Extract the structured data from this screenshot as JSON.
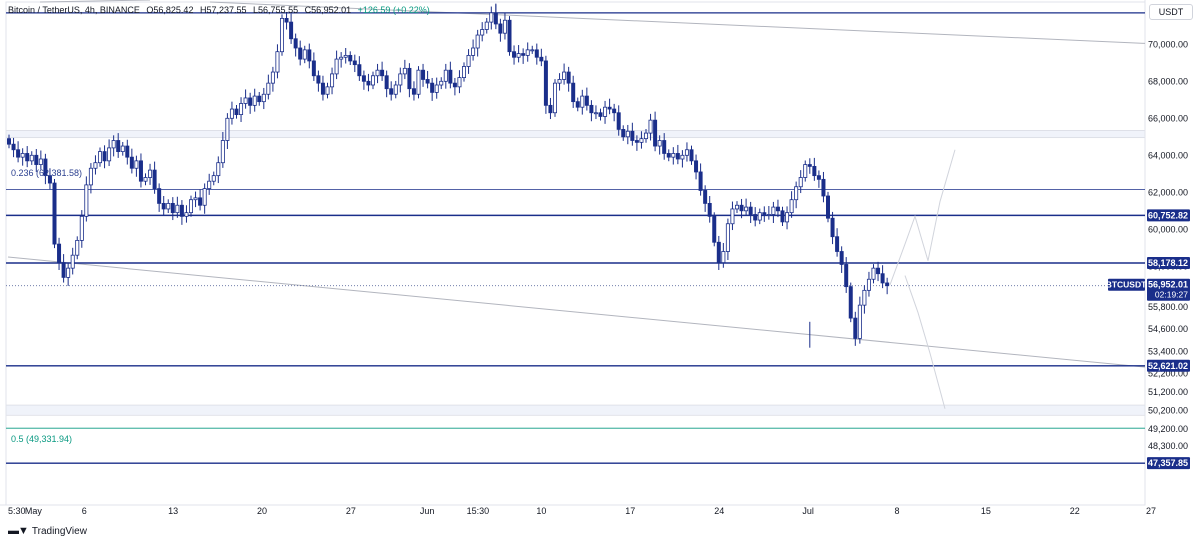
{
  "legend": {
    "symbol": "Bitcoin / TetherUS, 4h, BINANCE",
    "open": "O56,825.42",
    "high": "H57,237.55",
    "low": "L56,755.55",
    "close": "C56,952.01",
    "change": "+126.59 (+0.22%)"
  },
  "currency_button": "USDT",
  "fib_labels": {
    "f0236": "0.236 (62,381.58)",
    "f05": "0.5 (49,331.94)"
  },
  "brand": "TradingView",
  "colors": {
    "candle": "#1a2e8a",
    "level_line": "#1a2e8a",
    "trend_line": "#b2b5be",
    "fib05": "#089981",
    "price_tag_bg": "#1a2e8a",
    "zone_fill": "#f0f3fa"
  },
  "chart_data": {
    "type": "candlestick",
    "title": "Bitcoin / TetherUS, 4h, BINANCE",
    "ylim": [
      46700,
      72600
    ],
    "y_ticks": [
      "70,000.00",
      "68,000.00",
      "66,000.00",
      "64,000.00",
      "62,000.00",
      "60,000.00",
      "58,000.00",
      "55,800.00",
      "54,600.00",
      "53,400.00",
      "52,200.00",
      "51,200.00",
      "50,200.00",
      "49,200.00",
      "48,300.00"
    ],
    "y_tick_values": [
      70000,
      68000,
      66000,
      64000,
      62000,
      60000,
      58000,
      55800,
      54600,
      53400,
      52200,
      51200,
      50200,
      49200,
      48300
    ],
    "x_ticks": [
      "5:30",
      "May",
      "6",
      "13",
      "20",
      "27",
      "Jun",
      "15:30",
      "10",
      "17",
      "24",
      "Jul",
      "8",
      "15",
      "22",
      "27"
    ],
    "x_tick_days": [
      0,
      2,
      6,
      13,
      20,
      27,
      33,
      37,
      42,
      49,
      56,
      63,
      70,
      77,
      84,
      90
    ],
    "horizontal_levels": [
      {
        "value": 60752.82,
        "label": "60,752.82"
      },
      {
        "value": 58178.12,
        "label": "58,178.12"
      },
      {
        "value": 52621.02,
        "label": "52,621.02"
      },
      {
        "value": 47357.85,
        "label": "47,357.85"
      }
    ],
    "current_price": {
      "symbol": "BTCUSDT",
      "value": 56952.01,
      "label": "56,952.01",
      "countdown": "02:19:27"
    },
    "closes": [
      64600,
      64300,
      63900,
      64100,
      63700,
      64000,
      63500,
      63800,
      62900,
      62500,
      59200,
      58200,
      57400,
      57900,
      58600,
      59400,
      60700,
      62400,
      63300,
      63600,
      64200,
      63700,
      64400,
      64800,
      64200,
      64500,
      63900,
      63300,
      63700,
      62600,
      62800,
      63200,
      62200,
      61400,
      61100,
      61400,
      60900,
      61300,
      60700,
      60900,
      61600,
      61700,
      61300,
      62200,
      62600,
      62900,
      63600,
      64800,
      66000,
      66500,
      66200,
      66800,
      67100,
      66700,
      67200,
      66900,
      67300,
      67900,
      68500,
      69600,
      71400,
      71200,
      70300,
      69800,
      69200,
      69700,
      69100,
      68300,
      67900,
      67300,
      67700,
      68400,
      69200,
      69300,
      69400,
      69100,
      68900,
      68300,
      68000,
      67800,
      68300,
      68600,
      68300,
      67600,
      67300,
      67800,
      68400,
      68700,
      67600,
      67300,
      68600,
      68100,
      67900,
      67400,
      67800,
      68000,
      68600,
      67900,
      67700,
      68200,
      68800,
      69400,
      69800,
      70500,
      70800,
      71200,
      71700,
      71100,
      70600,
      71300,
      69600,
      69300,
      69500,
      69400,
      69700,
      69700,
      69300,
      69100,
      66700,
      66300,
      67900,
      68100,
      68500,
      67900,
      66900,
      66600,
      67200,
      66700,
      66300,
      66300,
      66100,
      66600,
      66500,
      66300,
      65400,
      65000,
      65300,
      64800,
      64700,
      64900,
      65200,
      65900,
      64500,
      64800,
      64100,
      63900,
      64100,
      63800,
      64000,
      64300,
      63700,
      63100,
      62100,
      61400,
      60700,
      59300,
      58200,
      58800,
      60300,
      61100,
      61300,
      61000,
      61200,
      60800,
      60500,
      60900,
      60800,
      60800,
      61200,
      61000,
      60400,
      60900,
      61600,
      62300,
      62800,
      63500,
      63400,
      62900,
      62700,
      61800,
      60600,
      59600,
      58800,
      58100,
      56900,
      55200,
      54100,
      55900,
      56700,
      57300,
      57900,
      57600,
      57100,
      56952
    ]
  }
}
